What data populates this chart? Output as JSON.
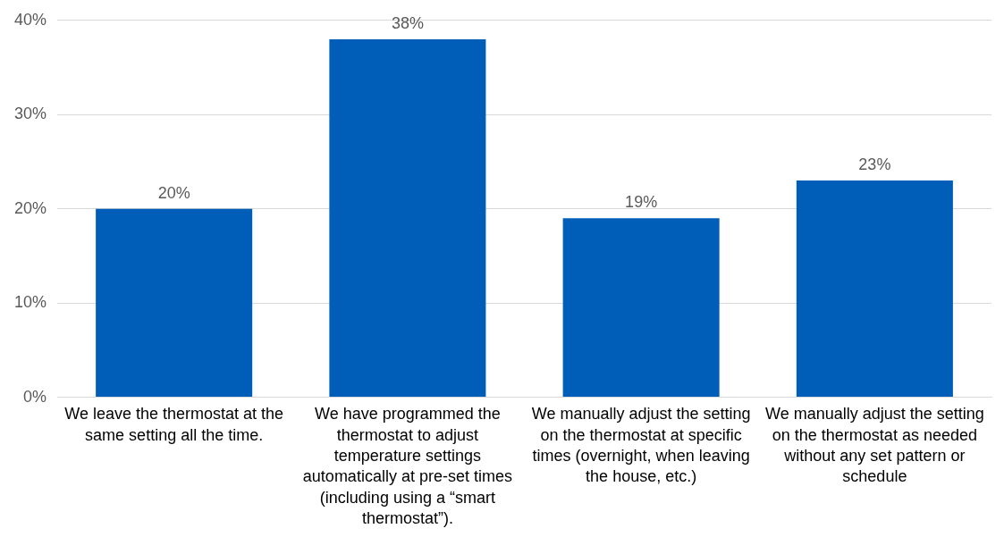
{
  "chart_data": {
    "type": "bar",
    "categories": [
      "We leave the thermostat at the same setting all the time.",
      "We have programmed the thermostat to adjust temperature settings automatically at pre-set times (including using a “smart thermostat”).",
      "We manually adjust the setting on the thermostat at specific times (overnight, when leaving the house, etc.)",
      "We manually adjust the setting on the thermostat as needed without any set pattern or schedule"
    ],
    "values": [
      20,
      38,
      19,
      23
    ],
    "value_labels": [
      "20%",
      "38%",
      "19%",
      "23%"
    ],
    "color": "#005eb8",
    "ylim": [
      0,
      40
    ],
    "yticks": [
      {
        "value": 0,
        "label": "0%"
      },
      {
        "value": 10,
        "label": "10%"
      },
      {
        "value": 20,
        "label": "20%"
      },
      {
        "value": 30,
        "label": "30%"
      },
      {
        "value": 40,
        "label": "40%"
      }
    ],
    "grid": "y",
    "legend": false
  }
}
